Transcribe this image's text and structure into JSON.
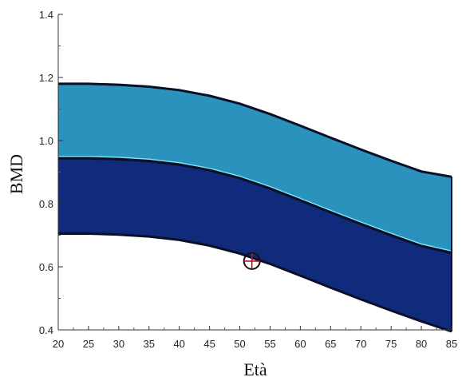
{
  "chart_data": {
    "type": "area",
    "title": "",
    "xlabel": "Età",
    "ylabel": "BMD",
    "xlim": [
      20,
      85
    ],
    "ylim": [
      0.4,
      1.4
    ],
    "x_ticks": [
      20,
      25,
      30,
      35,
      40,
      45,
      50,
      55,
      60,
      65,
      70,
      75,
      80,
      85
    ],
    "y_ticks": [
      "0.4",
      "0.6",
      "0.8",
      "1.0",
      "1.2",
      "1.4"
    ],
    "grid": false,
    "legend": "none",
    "x": [
      20,
      25,
      30,
      35,
      40,
      45,
      50,
      55,
      60,
      65,
      70,
      75,
      80,
      85
    ],
    "bands": [
      {
        "lower": [
          0.705,
          0.705,
          0.702,
          0.696,
          0.685,
          0.667,
          0.642,
          0.609,
          0.572,
          0.534,
          0.497,
          0.461,
          0.427,
          0.395
        ],
        "upper": [
          0.945,
          0.945,
          0.942,
          0.936,
          0.925,
          0.907,
          0.882,
          0.849,
          0.812,
          0.774,
          0.737,
          0.701,
          0.667,
          0.645
        ],
        "color": "#102a7c"
      },
      {
        "lower": [
          0.945,
          0.945,
          0.942,
          0.936,
          0.925,
          0.907,
          0.882,
          0.849,
          0.812,
          0.774,
          0.737,
          0.701,
          0.667,
          0.645
        ],
        "upper": [
          1.18,
          1.18,
          1.177,
          1.171,
          1.16,
          1.142,
          1.117,
          1.084,
          1.047,
          1.009,
          0.972,
          0.936,
          0.902,
          0.885
        ],
        "color": "#2a92bd"
      }
    ],
    "marker": {
      "x": 52,
      "y": 0.618,
      "symbol": "circle-plus-icon"
    },
    "colors": {
      "dark_band": "#102a7c",
      "light_band": "#2a92bd",
      "boundary": "#0a0f28",
      "band_highlight": "#79e1f3"
    }
  }
}
